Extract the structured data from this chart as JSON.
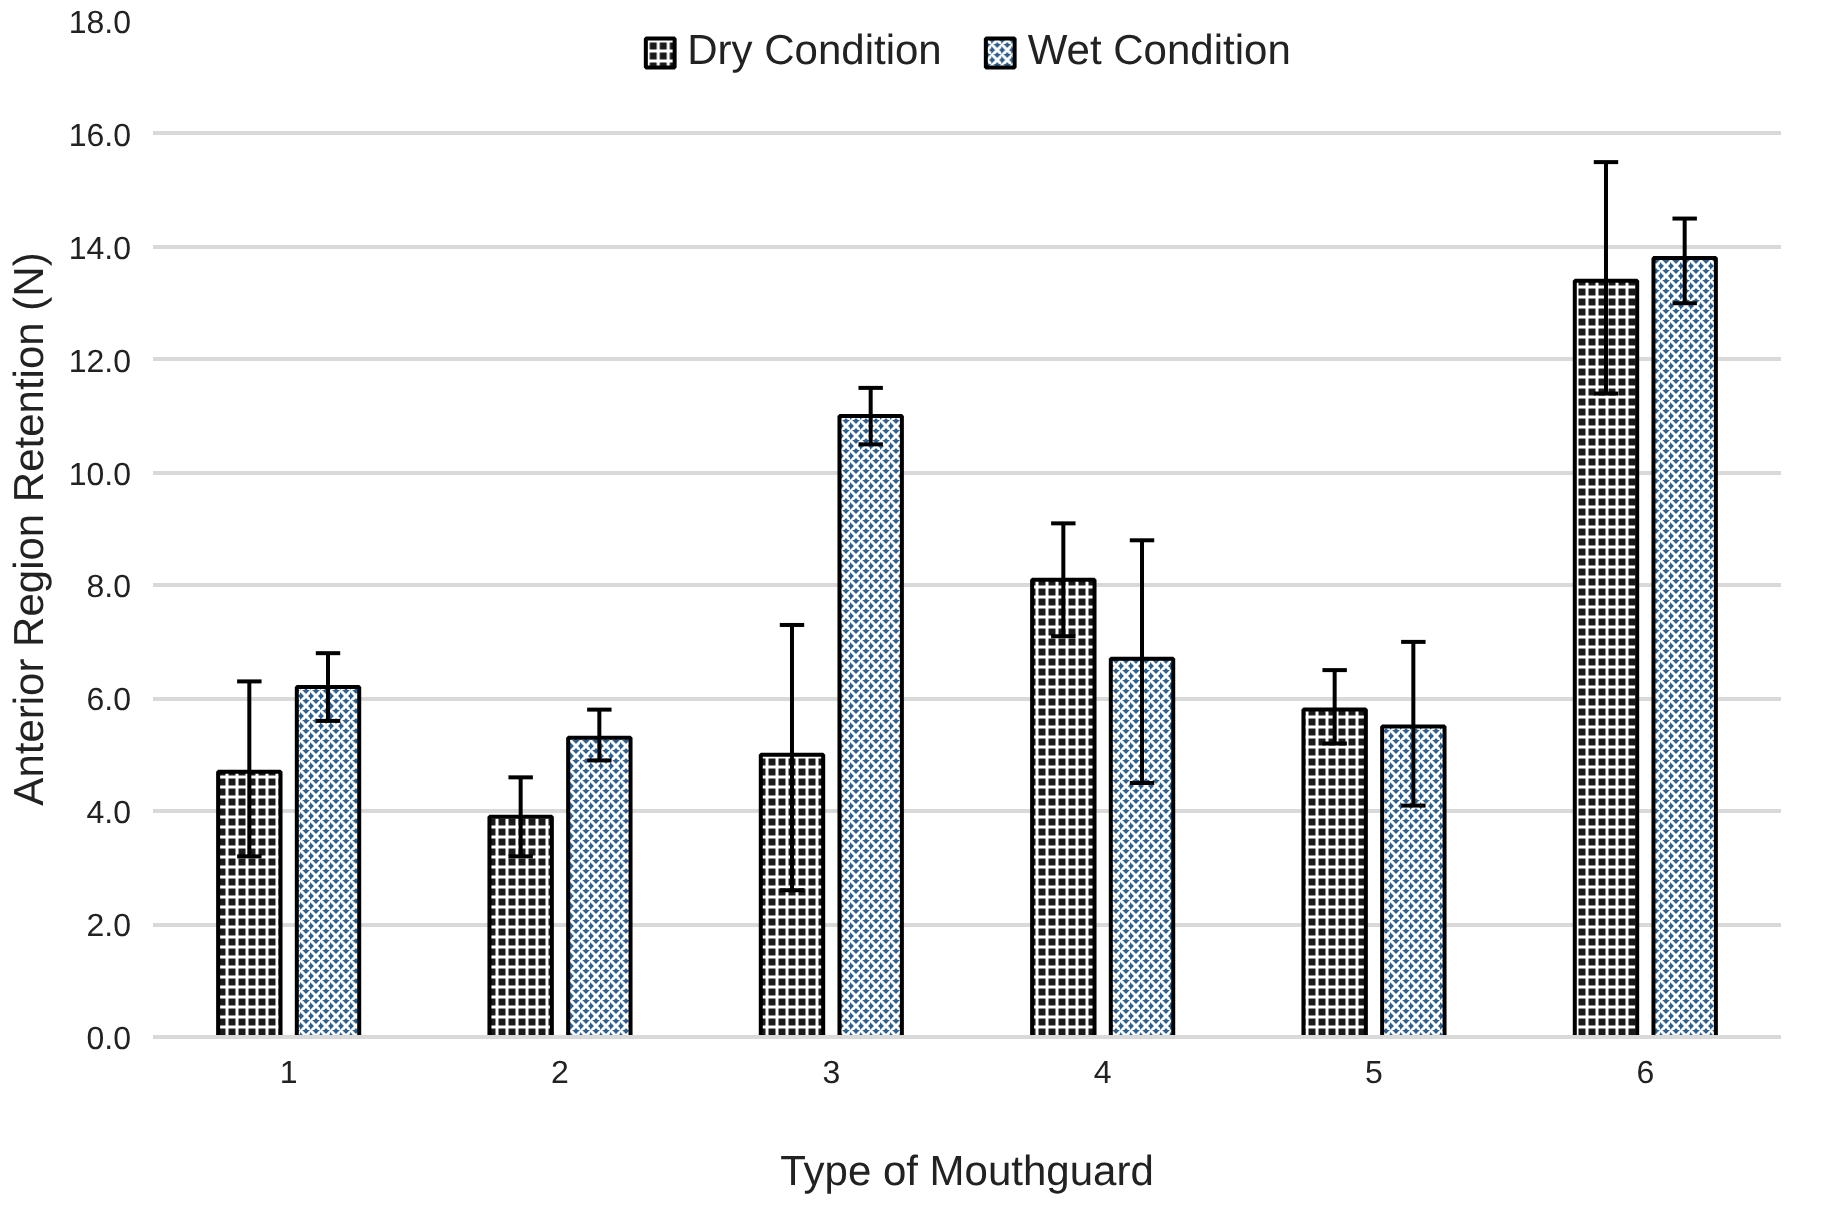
{
  "chart_data": {
    "type": "bar",
    "xlabel": "Type of Mouthguard",
    "ylabel": "Anterior Region Retention (N)",
    "categories": [
      "1",
      "2",
      "3",
      "4",
      "5",
      "6"
    ],
    "series": [
      {
        "name": "Dry Condition",
        "color": "#1a1a1a",
        "values": [
          4.7,
          3.9,
          5.0,
          8.1,
          5.8,
          13.4
        ],
        "errors": [
          [
            3.2,
            6.3
          ],
          [
            3.2,
            4.6
          ],
          [
            2.6,
            7.3
          ],
          [
            7.1,
            9.1
          ],
          [
            5.2,
            6.5
          ],
          [
            11.4,
            15.5
          ]
        ]
      },
      {
        "name": "Wet Condition",
        "color": "#2e5f8f",
        "values": [
          6.2,
          5.3,
          11.0,
          6.7,
          5.5,
          13.8
        ],
        "errors": [
          [
            5.6,
            6.8
          ],
          [
            4.9,
            5.8
          ],
          [
            10.5,
            11.5
          ],
          [
            4.5,
            8.8
          ],
          [
            4.1,
            7.0
          ],
          [
            13.0,
            14.5
          ]
        ]
      }
    ],
    "ylim": [
      0,
      18
    ],
    "yticks": [
      {
        "value": 0,
        "label": "0.0"
      },
      {
        "value": 2,
        "label": "2.0"
      },
      {
        "value": 4,
        "label": "4.0"
      },
      {
        "value": 6,
        "label": "6.0"
      },
      {
        "value": 8,
        "label": "8.0"
      },
      {
        "value": 10,
        "label": "10.0"
      },
      {
        "value": 12,
        "label": "12.0"
      },
      {
        "value": 14,
        "label": "14.0"
      },
      {
        "value": 16,
        "label": "16.0"
      },
      {
        "value": 18,
        "label": "18.0"
      }
    ],
    "grid": "y",
    "legend": "top"
  }
}
